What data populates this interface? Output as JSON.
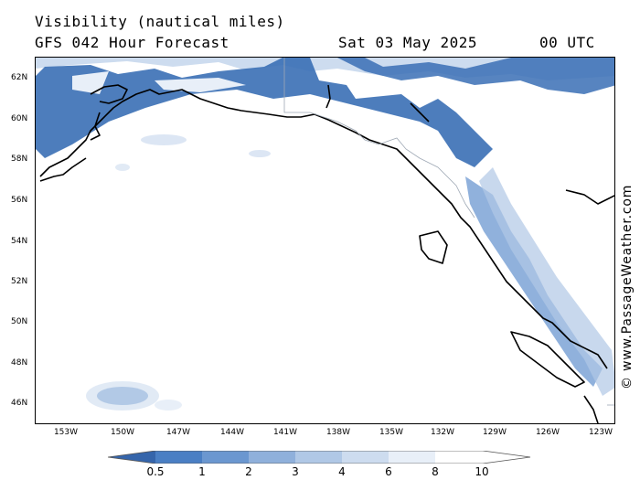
{
  "header": {
    "title": "Visibility (nautical miles)",
    "subtitle": "GFS 042 Hour Forecast",
    "date": "Sat 03 May 2025",
    "time": "00 UTC"
  },
  "credit": "© www.PassageWeather.com",
  "map": {
    "lat_labels": [
      "62N",
      "60N",
      "58N",
      "56N",
      "54N",
      "52N",
      "50N",
      "48N",
      "46N"
    ],
    "lon_labels": [
      "153W",
      "150W",
      "147W",
      "144W",
      "141W",
      "138W",
      "135W",
      "132W",
      "129W",
      "126W",
      "123W"
    ],
    "lat_range": [
      45,
      63
    ],
    "lon_range": [
      -155,
      -122.5
    ]
  },
  "legend": {
    "labels": [
      "0.5",
      "1",
      "2",
      "3",
      "4",
      "6",
      "8",
      "10"
    ],
    "colors": [
      "#3a6fb5",
      "#4a7fc4",
      "#6b97d0",
      "#8fb0db",
      "#b0c8e6",
      "#cddcef",
      "#e8eff8",
      "#ffffff"
    ]
  }
}
